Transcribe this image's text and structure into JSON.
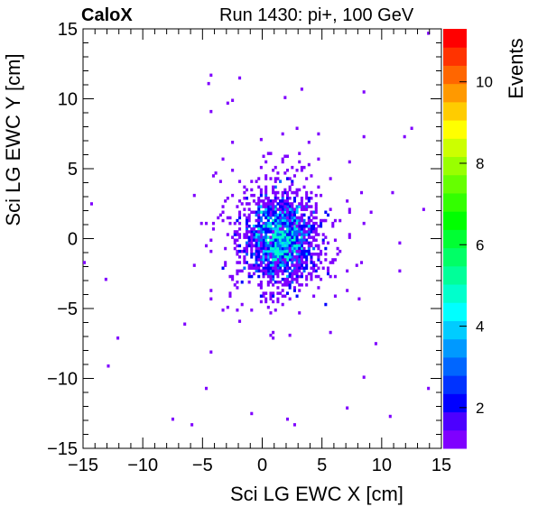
{
  "header": {
    "brand": "CaloX",
    "run_label": "Run 1430: pi+, 100 GeV"
  },
  "chart_data": {
    "type": "heatmap",
    "xlabel": "Sci LG EWC X [cm]",
    "ylabel": "Sci LG EWC Y [cm]",
    "zlabel": "Events",
    "xlim": [
      -15,
      15
    ],
    "ylim": [
      -15,
      15
    ],
    "zlim": [
      1,
      11.3
    ],
    "x_ticks": [
      -15,
      -10,
      -5,
      0,
      5,
      10,
      15
    ],
    "x_tick_labels": [
      "−15",
      "−10",
      "−5",
      "0",
      "5",
      "10",
      "15"
    ],
    "y_ticks": [
      -15,
      -10,
      -5,
      0,
      5,
      10,
      15
    ],
    "y_tick_labels": [
      "−15",
      "−10",
      "−5",
      "0",
      "5",
      "10",
      "15"
    ],
    "z_ticks": [
      2,
      4,
      6,
      8,
      10
    ],
    "z_tick_labels": [
      "2",
      "4",
      "6",
      "8",
      "10"
    ],
    "palette": [
      "#7f00ff",
      "#4c00ff",
      "#0000ff",
      "#0033ff",
      "#0066ff",
      "#0099ff",
      "#00ccff",
      "#00ffff",
      "#00ffcc",
      "#00ff99",
      "#00ff66",
      "#00ff33",
      "#00ff00",
      "#33ff00",
      "#66ff00",
      "#99ff00",
      "#ccff00",
      "#ffff00",
      "#ffcc00",
      "#ff9900",
      "#ff6600",
      "#ff3300",
      "#ff0000"
    ],
    "distribution": {
      "core_center": [
        1.5,
        0.0
      ],
      "core_sigma": [
        1.5,
        1.6
      ],
      "halo_sigma": [
        2.6,
        2.6
      ],
      "max_count": 5
    }
  }
}
